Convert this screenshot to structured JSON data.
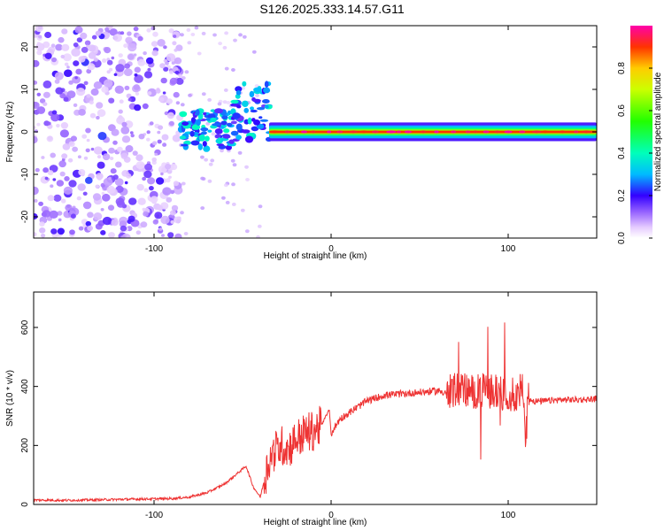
{
  "title": "S126.2025.333.14.57.G11",
  "chart_data": [
    {
      "type": "heatmap",
      "title": "S126.2025.333.14.57.G11",
      "xlabel": "Height of straight line (km)",
      "ylabel": "Frequency (Hz)",
      "xlim": [
        -168,
        150
      ],
      "ylim": [
        -25,
        25
      ],
      "x_ticks": [
        -100,
        0,
        100
      ],
      "x_tick_labels": [
        "-100",
        "0",
        "100"
      ],
      "y_ticks": [
        -20,
        -10,
        0,
        10,
        20
      ],
      "y_tick_labels": [
        "-20",
        "-10",
        "0",
        "10",
        "20"
      ],
      "colorbar": {
        "label": "Normalized spectral amplitude",
        "range": [
          0,
          1
        ],
        "ticks": [
          0.0,
          0.2,
          0.4,
          0.6,
          0.8
        ],
        "tick_labels": [
          "0.0",
          "0.2",
          "0.4",
          "0.6",
          "0.8"
        ]
      },
      "features": [
        {
          "x_range": [
            -168,
            -85
          ],
          "freq_range": [
            -25,
            25
          ],
          "description": "scattered noise"
        },
        {
          "x_range": [
            -85,
            -35
          ],
          "freq_range": [
            -5,
            10
          ],
          "description": "transition band"
        },
        {
          "x_range": [
            -35,
            150
          ],
          "freq_center": 0,
          "freq_halfwidth": 1.5,
          "peak_amplitude": 1.0
        }
      ]
    },
    {
      "type": "line",
      "xlabel": "Height of straight line (km)",
      "ylabel": "SNR (10 * v/v)",
      "xlim": [
        -168,
        150
      ],
      "ylim": [
        0,
        720
      ],
      "x_ticks": [
        -100,
        0,
        100
      ],
      "x_tick_labels": [
        "-100",
        "0",
        "100"
      ],
      "y_ticks": [
        0,
        200,
        400,
        600
      ],
      "y_tick_labels": [
        "0",
        "200",
        "400",
        "600"
      ],
      "series": [
        {
          "name": "SNR",
          "color": "#ee3333",
          "x": [
            -168,
            -150,
            -130,
            -110,
            -90,
            -80,
            -70,
            -60,
            -52,
            -48,
            -44,
            -40,
            -35,
            -32,
            -28,
            -24,
            -20,
            -15,
            -10,
            -5,
            -3,
            -1,
            0,
            5,
            10,
            15,
            20,
            30,
            40,
            50,
            60,
            65,
            70,
            75,
            80,
            85,
            90,
            95,
            100,
            104,
            108,
            110,
            111,
            115,
            120,
            130,
            140,
            150
          ],
          "values": [
            15,
            14,
            16,
            18,
            20,
            25,
            40,
            70,
            110,
            130,
            60,
            25,
            150,
            180,
            200,
            190,
            220,
            240,
            250,
            270,
            300,
            320,
            240,
            290,
            310,
            330,
            350,
            370,
            375,
            380,
            385,
            380,
            390,
            390,
            380,
            385,
            385,
            380,
            375,
            370,
            390,
            200,
            360,
            350,
            350,
            355,
            355,
            358
          ]
        }
      ]
    }
  ]
}
